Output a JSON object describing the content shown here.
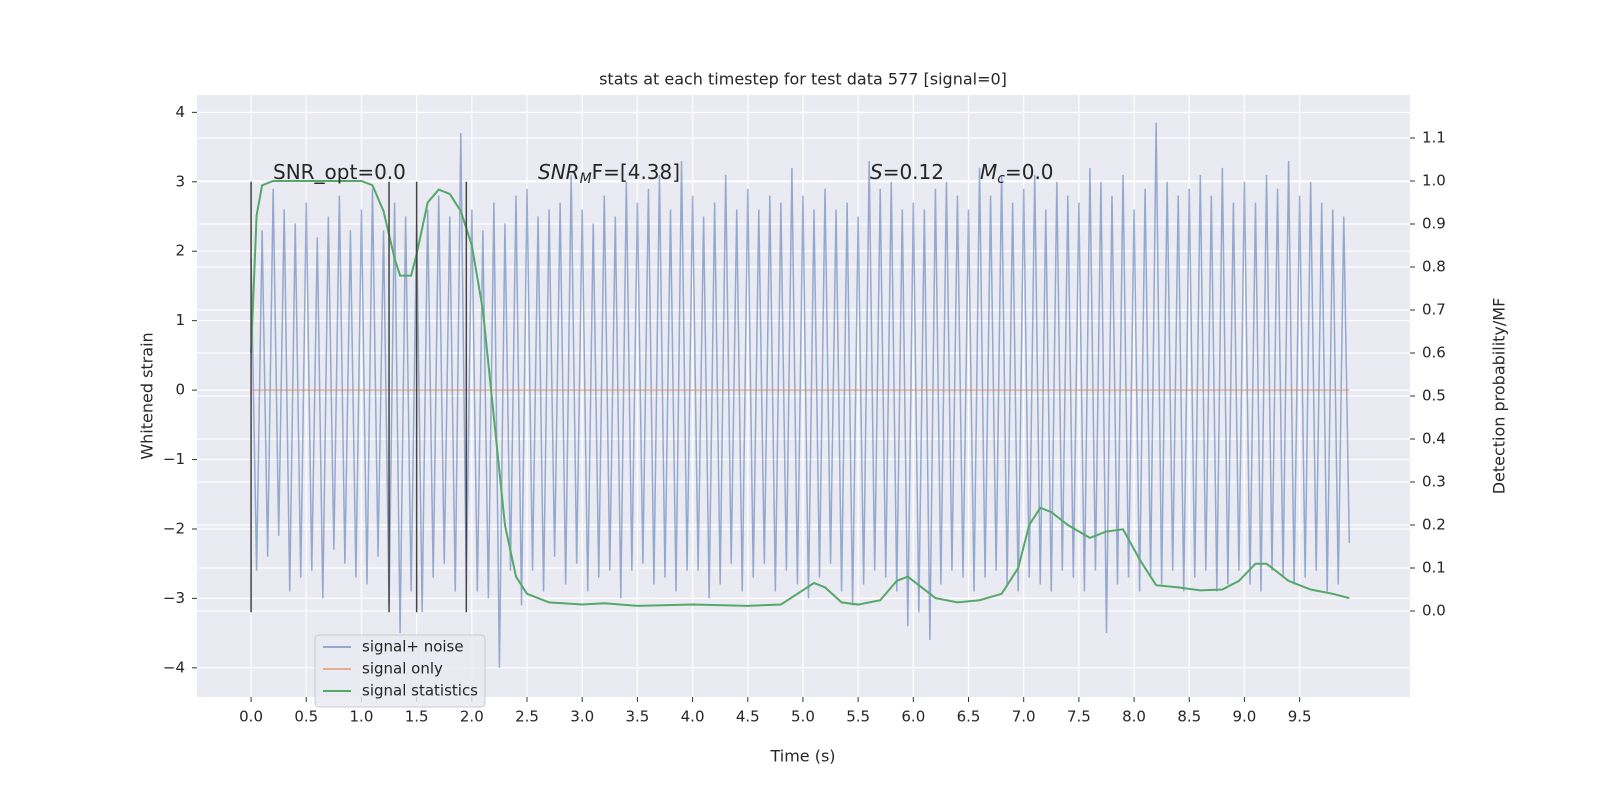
{
  "chart_data": {
    "type": "line",
    "title": "stats at each timestep for test data 577 [signal=0]",
    "x_label": "Time (s)",
    "y_label": "Whitened strain",
    "y2_label": "Detection probability/MF",
    "xlim": [
      -0.49,
      10.5
    ],
    "ylim": [
      -4.42,
      4.25
    ],
    "y2lim": [
      -0.2,
      1.2
    ],
    "xticks": [
      {
        "value": 0,
        "label": "0.0"
      },
      0.5,
      {
        "value": 1,
        "label": "1.0"
      },
      1.5,
      {
        "value": 2,
        "label": "2.0"
      },
      2.5,
      {
        "value": 3,
        "label": "3.0"
      },
      3.5,
      {
        "value": 4,
        "label": "4.0"
      },
      4.5,
      {
        "value": 5,
        "label": "5.0"
      },
      5.5,
      {
        "value": 6,
        "label": "6.0"
      },
      6.5,
      {
        "value": 7,
        "label": "7.0"
      },
      7.5,
      {
        "value": 8,
        "label": "8.0"
      },
      8.5,
      {
        "value": 9,
        "label": "9.0"
      },
      9.5
    ],
    "yticks": [
      {
        "value": -4,
        "label": "−4"
      },
      {
        "value": -3,
        "label": "−3"
      },
      {
        "value": -2,
        "label": "−2"
      },
      {
        "value": -1,
        "label": "−1"
      },
      0,
      1,
      2,
      3,
      4
    ],
    "y2ticks": [
      {
        "value": 0,
        "label": "0.0"
      },
      0.1,
      0.2,
      0.3,
      0.4,
      0.5,
      0.6,
      0.7,
      0.8,
      0.9,
      {
        "value": 1,
        "label": "1.0"
      },
      1.1
    ],
    "grid": true,
    "legend": "lower left",
    "series": [
      {
        "name": "signal+ noise",
        "color": "rgba(76,114,176,0.55)",
        "axis": "y",
        "x": [
          0,
          0.05,
          0.1,
          0.15,
          0.2,
          0.25,
          0.3,
          0.35,
          0.4,
          0.45,
          0.5,
          0.55,
          0.6,
          0.65,
          0.7,
          0.75,
          0.8,
          0.85,
          0.9,
          0.95,
          1,
          1.05,
          1.1,
          1.15,
          1.2,
          1.25,
          1.3,
          1.35,
          1.4,
          1.45,
          1.5,
          1.55,
          1.6,
          1.65,
          1.7,
          1.75,
          1.8,
          1.85,
          1.9,
          1.95,
          2,
          2.05,
          2.1,
          2.15,
          2.2,
          2.25,
          2.3,
          2.35,
          2.4,
          2.45,
          2.5,
          2.55,
          2.6,
          2.65,
          2.7,
          2.75,
          2.8,
          2.85,
          2.9,
          2.95,
          3,
          3.05,
          3.1,
          3.15,
          3.2,
          3.25,
          3.3,
          3.35,
          3.4,
          3.45,
          3.5,
          3.55,
          3.6,
          3.65,
          3.7,
          3.75,
          3.8,
          3.85,
          3.9,
          3.95,
          4,
          4.05,
          4.1,
          4.15,
          4.2,
          4.25,
          4.3,
          4.35,
          4.4,
          4.45,
          4.5,
          4.55,
          4.6,
          4.65,
          4.7,
          4.75,
          4.8,
          4.85,
          4.9,
          4.95,
          5,
          5.05,
          5.1,
          5.15,
          5.2,
          5.25,
          5.3,
          5.35,
          5.4,
          5.45,
          5.5,
          5.55,
          5.6,
          5.65,
          5.7,
          5.75,
          5.8,
          5.85,
          5.9,
          5.95,
          6,
          6.05,
          6.1,
          6.15,
          6.2,
          6.25,
          6.3,
          6.35,
          6.4,
          6.45,
          6.5,
          6.55,
          6.6,
          6.65,
          6.7,
          6.75,
          6.8,
          6.85,
          6.9,
          6.95,
          7,
          7.05,
          7.1,
          7.15,
          7.2,
          7.25,
          7.3,
          7.35,
          7.4,
          7.45,
          7.5,
          7.55,
          7.6,
          7.65,
          7.7,
          7.75,
          7.8,
          7.85,
          7.9,
          7.95,
          8,
          8.05,
          8.1,
          8.15,
          8.2,
          8.25,
          8.3,
          8.35,
          8.4,
          8.45,
          8.5,
          8.55,
          8.6,
          8.65,
          8.7,
          8.75,
          8.8,
          8.85,
          8.9,
          8.95,
          9,
          9.05,
          9.1,
          9.15,
          9.2,
          9.25,
          9.3,
          9.35,
          9.4,
          9.45,
          9.5,
          9.55,
          9.6,
          9.65,
          9.7,
          9.75,
          9.8,
          9.85,
          9.9,
          9.95
        ],
        "values": [
          1.9,
          -2.6,
          2.3,
          -2.4,
          2.9,
          -2.1,
          2.6,
          -2.9,
          2.4,
          -2.7,
          2.7,
          -2.6,
          2.2,
          -3.0,
          2.5,
          -2.3,
          2.8,
          -2.5,
          2.3,
          -2.7,
          2.6,
          -2.8,
          2.9,
          -2.4,
          2.3,
          -3.1,
          2.7,
          -3.5,
          2.5,
          -2.9,
          2.4,
          -3.2,
          2.6,
          -2.7,
          2.8,
          -2.5,
          2.5,
          -2.9,
          3.7,
          -2.8,
          2.6,
          -2.9,
          2.3,
          -3.0,
          2.7,
          -4.0,
          2.4,
          -2.6,
          2.8,
          -3.1,
          2.9,
          -2.6,
          2.5,
          -2.9,
          2.6,
          -2.4,
          2.7,
          -2.8,
          3.1,
          -2.5,
          2.6,
          -2.9,
          2.4,
          -2.7,
          2.8,
          -2.6,
          2.5,
          -3.0,
          3.0,
          -2.6,
          2.7,
          -2.5,
          2.9,
          -2.8,
          3.1,
          -2.7,
          2.6,
          -2.9,
          3.3,
          -2.6,
          2.8,
          -2.6,
          2.5,
          -3.0,
          2.7,
          -2.8,
          3.1,
          -2.5,
          2.6,
          -2.9,
          2.9,
          -2.7,
          2.6,
          -2.5,
          2.8,
          -2.9,
          2.7,
          -2.6,
          3.2,
          -2.8,
          2.8,
          -3.0,
          2.6,
          -2.7,
          2.9,
          -2.5,
          2.6,
          -2.9,
          2.7,
          -3.1,
          2.5,
          -2.8,
          3.3,
          -2.6,
          2.9,
          -2.7,
          3.0,
          -2.9,
          2.6,
          -3.4,
          2.7,
          -3.2,
          2.6,
          -3.6,
          2.9,
          -2.8,
          3.0,
          -2.6,
          2.8,
          -2.7,
          2.6,
          -2.9,
          3.2,
          -2.7,
          2.8,
          -2.6,
          3.1,
          -2.8,
          2.7,
          -2.9,
          2.9,
          -2.7,
          3.1,
          -2.8,
          2.6,
          -2.9,
          3.0,
          -2.6,
          2.8,
          -2.7,
          2.7,
          -2.9,
          3.2,
          -2.6,
          3.0,
          -3.5,
          2.8,
          -2.8,
          3.1,
          -2.7,
          2.6,
          -2.9,
          2.9,
          -2.7,
          3.85,
          -2.8,
          3.0,
          -2.6,
          2.8,
          -2.9,
          2.9,
          -2.7,
          3.1,
          -2.6,
          2.8,
          -2.9,
          3.2,
          -2.8,
          2.7,
          -2.6,
          3.0,
          -2.8,
          2.7,
          -2.9,
          3.1,
          -2.6,
          2.9,
          -2.7,
          3.3,
          -2.8,
          2.8,
          -2.7,
          3.0,
          -2.6,
          2.7,
          -2.9,
          2.6,
          -2.8,
          2.5,
          -2.2
        ]
      },
      {
        "name": "signal only",
        "color": "rgba(221,132,82,0.6)",
        "axis": "y",
        "x": [
          0,
          9.95
        ],
        "values": [
          0,
          0
        ]
      },
      {
        "name": "signal statistics",
        "color": "#55a868",
        "axis": "y2",
        "x": [
          0,
          0.05,
          0.1,
          0.2,
          0.3,
          0.5,
          0.8,
          1,
          1.1,
          1.2,
          1.3,
          1.35,
          1.45,
          1.5,
          1.6,
          1.7,
          1.8,
          1.9,
          2,
          2.1,
          2.2,
          2.3,
          2.4,
          2.5,
          2.7,
          3,
          3.2,
          3.5,
          4,
          4.5,
          4.8,
          4.95,
          5.1,
          5.2,
          5.35,
          5.5,
          5.7,
          5.85,
          5.95,
          6.05,
          6.2,
          6.4,
          6.6,
          6.8,
          6.95,
          7.05,
          7.15,
          7.25,
          7.4,
          7.6,
          7.75,
          7.9,
          8.05,
          8.2,
          8.4,
          8.6,
          8.8,
          8.95,
          9.1,
          9.2,
          9.4,
          9.6,
          9.8,
          9.95
        ],
        "values": [
          0.6,
          0.92,
          0.99,
          1.0,
          1.0,
          1.0,
          1.0,
          1.0,
          0.99,
          0.93,
          0.82,
          0.78,
          0.78,
          0.83,
          0.95,
          0.98,
          0.97,
          0.93,
          0.85,
          0.7,
          0.45,
          0.2,
          0.08,
          0.04,
          0.02,
          0.015,
          0.018,
          0.012,
          0.015,
          0.012,
          0.015,
          0.04,
          0.065,
          0.055,
          0.02,
          0.015,
          0.025,
          0.07,
          0.08,
          0.06,
          0.03,
          0.02,
          0.025,
          0.04,
          0.1,
          0.2,
          0.24,
          0.23,
          0.2,
          0.17,
          0.185,
          0.19,
          0.12,
          0.06,
          0.055,
          0.048,
          0.05,
          0.07,
          0.11,
          0.11,
          0.07,
          0.05,
          0.04,
          0.03
        ]
      }
    ],
    "vlines": {
      "x": [
        0,
        1.25,
        1.5,
        1.95
      ],
      "ymin": -3.2,
      "ymax": 3
    },
    "annotations": [
      {
        "base": "SNR_opt=0.0"
      },
      {
        "base": "SNR",
        "sub": "M",
        "tail": "F=[4.38]"
      },
      {
        "base": "S",
        "tail": "=0.12"
      },
      {
        "base": "M",
        "sub": "c",
        "tail": "=0.0"
      }
    ]
  }
}
